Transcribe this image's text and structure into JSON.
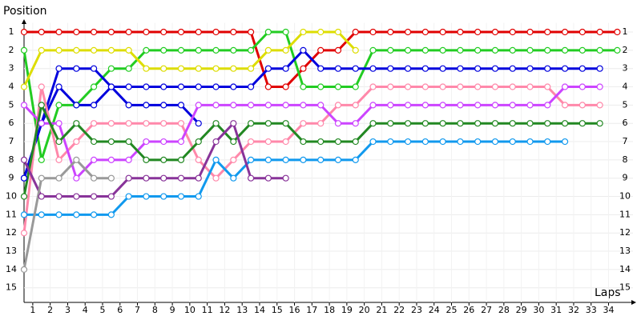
{
  "chart_data": {
    "type": "line",
    "y_label": "Position",
    "x_label": "Laps",
    "x": [
      0,
      1,
      2,
      3,
      4,
      5,
      6,
      7,
      8,
      9,
      10,
      11,
      12,
      13,
      14,
      15,
      16,
      17,
      18,
      19,
      20,
      21,
      22,
      23,
      24,
      25,
      26,
      27,
      28,
      29,
      30,
      31,
      32,
      33,
      34
    ],
    "xlim": [
      0,
      34.9
    ],
    "ylim": [
      15.8,
      0.5
    ],
    "xticks": [
      {
        "value": 0.5,
        "label": "1"
      },
      {
        "value": 1.5,
        "label": "2"
      },
      {
        "value": 2.5,
        "label": "3"
      },
      {
        "value": 3.5,
        "label": "4"
      },
      {
        "value": 4.5,
        "label": "5"
      },
      {
        "value": 5.5,
        "label": "6"
      },
      {
        "value": 6.5,
        "label": "7"
      },
      {
        "value": 7.5,
        "label": "8"
      },
      {
        "value": 8.5,
        "label": "9"
      },
      {
        "value": 9.5,
        "label": "10"
      },
      {
        "value": 10.5,
        "label": "11"
      },
      {
        "value": 11.5,
        "label": "12"
      },
      {
        "value": 12.5,
        "label": "13"
      },
      {
        "value": 13.5,
        "label": "14"
      },
      {
        "value": 14.5,
        "label": "15"
      },
      {
        "value": 15.5,
        "label": "16"
      },
      {
        "value": 16.5,
        "label": "17"
      },
      {
        "value": 17.5,
        "label": "18"
      },
      {
        "value": 18.5,
        "label": "19"
      },
      {
        "value": 19.5,
        "label": "20"
      },
      {
        "value": 20.5,
        "label": "21"
      },
      {
        "value": 21.5,
        "label": "22"
      },
      {
        "value": 22.5,
        "label": "23"
      },
      {
        "value": 23.5,
        "label": "24"
      },
      {
        "value": 24.5,
        "label": "25"
      },
      {
        "value": 25.5,
        "label": "26"
      },
      {
        "value": 26.5,
        "label": "27"
      },
      {
        "value": 27.5,
        "label": "28"
      },
      {
        "value": 28.5,
        "label": "29"
      },
      {
        "value": 29.5,
        "label": "30"
      },
      {
        "value": 30.5,
        "label": "31"
      },
      {
        "value": 31.5,
        "label": "32"
      },
      {
        "value": 32.5,
        "label": "33"
      },
      {
        "value": 33.5,
        "label": "34"
      }
    ],
    "yticks": [
      1,
      2,
      3,
      4,
      5,
      6,
      7,
      8,
      9,
      10,
      11,
      12,
      13,
      14,
      15
    ],
    "grid": true,
    "series": [
      {
        "color": "#e00000",
        "values": [
          1,
          1,
          1,
          1,
          1,
          1,
          1,
          1,
          1,
          1,
          1,
          1,
          1,
          1,
          4,
          4,
          3,
          2,
          2,
          1,
          1,
          1,
          1,
          1,
          1,
          1,
          1,
          1,
          1,
          1,
          1,
          1,
          1,
          1,
          1
        ]
      },
      {
        "color": "#22cc22",
        "values": [
          2,
          8,
          5,
          5,
          4,
          3,
          3,
          2,
          2,
          2,
          2,
          2,
          2,
          2,
          1,
          1,
          4,
          4,
          4,
          4,
          2,
          2,
          2,
          2,
          2,
          2,
          2,
          2,
          2,
          2,
          2,
          2,
          2,
          2,
          2
        ]
      },
      {
        "color": "#dddd00",
        "values": [
          4,
          2,
          2,
          2,
          2,
          2,
          2,
          3,
          3,
          3,
          3,
          3,
          3,
          3,
          2,
          2,
          1,
          1,
          1,
          2,
          null,
          null,
          null,
          null,
          null,
          null,
          null,
          null,
          null,
          null,
          null,
          null,
          null,
          null,
          null
        ]
      },
      {
        "color": "#0000dd",
        "values": [
          9,
          6,
          3,
          3,
          3,
          4,
          4,
          4,
          4,
          4,
          4,
          4,
          4,
          4,
          3,
          3,
          2,
          3,
          3,
          3,
          3,
          3,
          3,
          3,
          3,
          3,
          3,
          3,
          3,
          3,
          3,
          3,
          3,
          3,
          null
        ]
      },
      {
        "color": "#0000dd",
        "values": [
          9,
          6,
          4,
          5,
          5,
          4,
          5,
          5,
          5,
          5,
          6,
          null,
          null,
          null,
          null,
          null,
          null,
          null,
          null,
          null,
          null,
          null,
          null,
          null,
          null,
          null,
          null,
          null,
          null,
          null,
          null,
          null,
          null,
          null,
          null
        ]
      },
      {
        "color": "#ff88aa",
        "values": [
          12,
          4,
          8,
          7,
          6,
          6,
          6,
          6,
          6,
          6,
          8,
          9,
          8,
          7,
          7,
          7,
          6,
          6,
          5,
          5,
          4,
          4,
          4,
          4,
          4,
          4,
          4,
          4,
          4,
          4,
          4,
          5,
          5,
          5,
          null
        ]
      },
      {
        "color": "#cc44ff",
        "values": [
          5,
          6,
          6,
          9,
          8,
          8,
          8,
          7,
          7,
          7,
          5,
          5,
          5,
          5,
          5,
          5,
          5,
          5,
          6,
          6,
          5,
          5,
          5,
          5,
          5,
          5,
          5,
          5,
          5,
          5,
          5,
          4,
          4,
          4,
          null
        ]
      },
      {
        "color": "#228822",
        "values": [
          10,
          5,
          7,
          6,
          7,
          7,
          7,
          8,
          8,
          8,
          7,
          6,
          7,
          6,
          6,
          6,
          7,
          7,
          7,
          7,
          6,
          6,
          6,
          6,
          6,
          6,
          6,
          6,
          6,
          6,
          6,
          6,
          6,
          6,
          null
        ]
      },
      {
        "color": "#1199ee",
        "values": [
          11,
          11,
          11,
          11,
          11,
          11,
          10,
          10,
          10,
          10,
          10,
          8,
          9,
          8,
          8,
          8,
          8,
          8,
          8,
          8,
          7,
          7,
          7,
          7,
          7,
          7,
          7,
          7,
          7,
          7,
          7,
          7,
          null,
          null,
          null
        ]
      },
      {
        "color": "#883399",
        "values": [
          8,
          10,
          10,
          10,
          10,
          10,
          9,
          9,
          9,
          9,
          9,
          7,
          6,
          9,
          9,
          9,
          null,
          null,
          null,
          null,
          null,
          null,
          null,
          null,
          null,
          null,
          null,
          null,
          null,
          null,
          null,
          null,
          null,
          null,
          null
        ]
      },
      {
        "color": "#999999",
        "values": [
          14,
          9,
          9,
          8,
          9,
          9,
          null,
          null,
          null,
          null,
          null,
          null,
          null,
          null,
          null,
          null,
          null,
          null,
          null,
          null,
          null,
          null,
          null,
          null,
          null,
          null,
          null,
          null,
          null,
          null,
          null,
          null,
          null,
          null,
          null
        ]
      }
    ]
  }
}
